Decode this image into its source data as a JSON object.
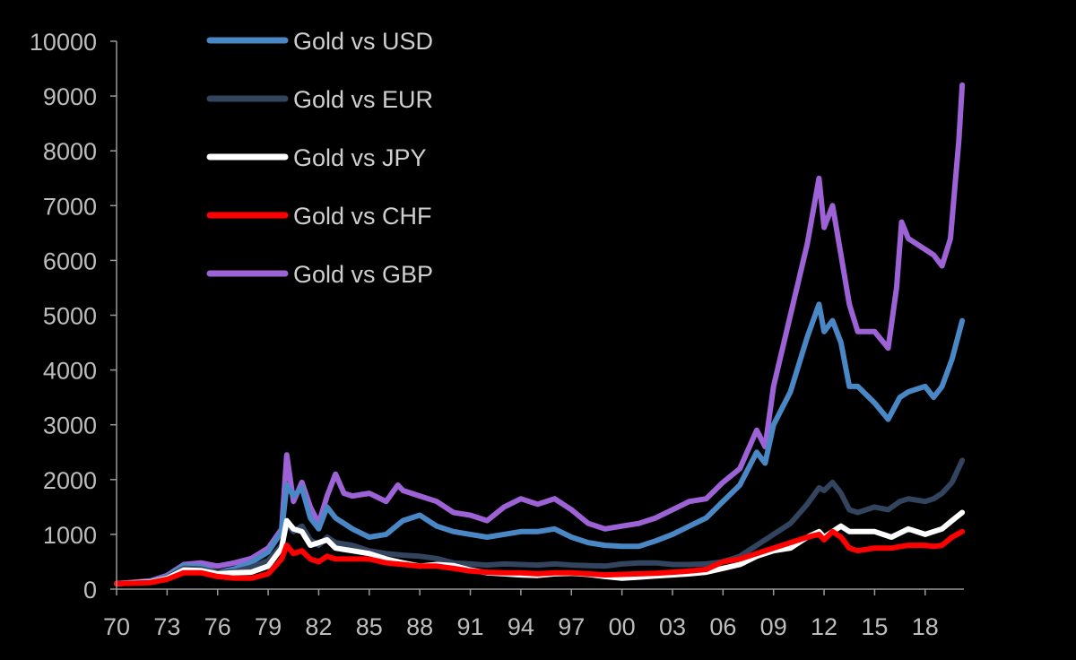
{
  "chart_data": {
    "type": "line",
    "title": "",
    "xlabel": "",
    "ylabel": "",
    "xlim": [
      1970,
      2020.3
    ],
    "ylim": [
      0,
      10000
    ],
    "y_ticks": [
      0,
      1000,
      2000,
      3000,
      4000,
      5000,
      6000,
      7000,
      8000,
      9000,
      10000
    ],
    "x_tick_values": [
      1970,
      1973,
      1976,
      1979,
      1982,
      1985,
      1988,
      1991,
      1994,
      1997,
      2000,
      2003,
      2006,
      2009,
      2012,
      2015,
      2018
    ],
    "x_tick_labels": [
      "70",
      "73",
      "76",
      "79",
      "82",
      "85",
      "88",
      "91",
      "94",
      "97",
      "00",
      "03",
      "06",
      "09",
      "12",
      "15",
      "18"
    ],
    "grid": false,
    "legend_position": "top-left",
    "series": [
      {
        "name": "Gold vs USD",
        "color": "#4a87c5",
        "x": [
          1970,
          1972,
          1973,
          1974,
          1975,
          1976,
          1977,
          1978,
          1979,
          1979.8,
          1980.1,
          1980.5,
          1981,
          1981.5,
          1982,
          1982.5,
          1983,
          1984,
          1985,
          1986,
          1987,
          1988,
          1989,
          1990,
          1991,
          1992,
          1993,
          1994,
          1995,
          1996,
          1997,
          1998,
          1999,
          2000,
          2001,
          2002,
          2003,
          2004,
          2005,
          2006,
          2007,
          2008,
          2008.5,
          2009,
          2010,
          2011,
          2011.7,
          2012,
          2012.5,
          2013,
          2013.5,
          2014,
          2015,
          2015.8,
          2016.5,
          2017,
          2018,
          2018.5,
          2019,
          2019.6,
          2020.2
        ],
        "y": [
          100,
          140,
          230,
          430,
          410,
          300,
          370,
          490,
          680,
          1050,
          1900,
          1700,
          1850,
          1300,
          1100,
          1500,
          1300,
          1100,
          950,
          1000,
          1250,
          1350,
          1150,
          1050,
          1000,
          950,
          1000,
          1050,
          1050,
          1100,
          950,
          850,
          800,
          780,
          780,
          880,
          1000,
          1150,
          1300,
          1600,
          1900,
          2500,
          2300,
          3000,
          3600,
          4600,
          5200,
          4700,
          4900,
          4500,
          3700,
          3700,
          3400,
          3100,
          3500,
          3600,
          3700,
          3500,
          3700,
          4200,
          4900
        ]
      },
      {
        "name": "Gold vs EUR",
        "color": "#33445e",
        "x": [
          1970,
          1972,
          1973,
          1974,
          1975,
          1976,
          1977,
          1978,
          1979,
          1979.8,
          1980.1,
          1980.5,
          1981,
          1981.5,
          1982,
          1982.5,
          1983,
          1984,
          1985,
          1986,
          1987,
          1988,
          1989,
          1990,
          1991,
          1992,
          1993,
          1994,
          1995,
          1996,
          1997,
          1998,
          1999,
          2000,
          2001,
          2002,
          2003,
          2004,
          2005,
          2006,
          2007,
          2008,
          2009,
          2010,
          2011,
          2011.7,
          2012,
          2012.5,
          2013,
          2013.5,
          2014,
          2015,
          2015.8,
          2016.5,
          2017,
          2018,
          2018.5,
          2019,
          2019.6,
          2020.2
        ],
        "y": [
          100,
          130,
          210,
          380,
          370,
          300,
          320,
          400,
          520,
          800,
          1200,
          1050,
          1150,
          900,
          800,
          950,
          850,
          800,
          700,
          650,
          620,
          600,
          560,
          480,
          460,
          440,
          460,
          450,
          440,
          460,
          440,
          430,
          420,
          460,
          480,
          480,
          450,
          450,
          460,
          500,
          600,
          800,
          1000,
          1200,
          1550,
          1850,
          1800,
          1950,
          1750,
          1450,
          1400,
          1500,
          1450,
          1600,
          1650,
          1600,
          1650,
          1750,
          1950,
          2350
        ]
      },
      {
        "name": "Gold vs JPY",
        "color": "#ffffff",
        "x": [
          1970,
          1972,
          1973,
          1974,
          1975,
          1976,
          1977,
          1978,
          1979,
          1979.8,
          1980.1,
          1980.5,
          1981,
          1981.5,
          1982,
          1982.5,
          1983,
          1984,
          1985,
          1986,
          1987,
          1988,
          1989,
          1990,
          1991,
          1992,
          1993,
          1994,
          1995,
          1996,
          1997,
          1998,
          1999,
          2000,
          2001,
          2002,
          2003,
          2004,
          2005,
          2006,
          2007,
          2008,
          2009,
          2010,
          2011,
          2011.7,
          2012,
          2012.5,
          2013,
          2013.5,
          2014,
          2015,
          2016,
          2017,
          2018,
          2018.5,
          2019,
          2019.6,
          2020.2
        ],
        "y": [
          100,
          130,
          200,
          350,
          340,
          280,
          300,
          310,
          420,
          750,
          1250,
          1100,
          1050,
          800,
          850,
          900,
          750,
          700,
          650,
          550,
          480,
          420,
          450,
          430,
          350,
          300,
          280,
          260,
          250,
          280,
          290,
          270,
          230,
          200,
          220,
          240,
          260,
          280,
          310,
          380,
          450,
          600,
          700,
          750,
          950,
          1050,
          950,
          1050,
          1150,
          1050,
          1050,
          1050,
          950,
          1100,
          1000,
          1050,
          1100,
          1250,
          1400
        ]
      },
      {
        "name": "Gold vs CHF",
        "color": "#ff0000",
        "x": [
          1970,
          1972,
          1973,
          1974,
          1975,
          1976,
          1977,
          1978,
          1979,
          1979.8,
          1980.1,
          1980.5,
          1981,
          1981.5,
          1982,
          1982.5,
          1983,
          1984,
          1985,
          1986,
          1987,
          1988,
          1989,
          1990,
          1991,
          1992,
          1993,
          1994,
          1995,
          1996,
          1997,
          1998,
          1999,
          2000,
          2001,
          2002,
          2003,
          2004,
          2005,
          2006,
          2007,
          2008,
          2009,
          2010,
          2011,
          2011.7,
          2012,
          2012.5,
          2013,
          2013.5,
          2014,
          2015,
          2016,
          2017,
          2018,
          2018.5,
          2019,
          2019.6,
          2020.2
        ],
        "y": [
          100,
          120,
          180,
          300,
          300,
          230,
          200,
          200,
          280,
          550,
          800,
          650,
          700,
          550,
          500,
          600,
          550,
          550,
          550,
          480,
          450,
          420,
          420,
          380,
          330,
          310,
          300,
          300,
          280,
          300,
          300,
          280,
          260,
          270,
          280,
          290,
          310,
          330,
          360,
          500,
          550,
          650,
          750,
          850,
          950,
          1000,
          900,
          1050,
          950,
          750,
          700,
          750,
          750,
          800,
          800,
          780,
          800,
          950,
          1050
        ]
      },
      {
        "name": "Gold vs GBP",
        "color": "#9d63d6",
        "x": [
          1970,
          1972,
          1973,
          1974,
          1975,
          1976,
          1977,
          1978,
          1979,
          1979.8,
          1980.1,
          1980.5,
          1981,
          1981.5,
          1982,
          1982.5,
          1983,
          1983.5,
          1984,
          1985,
          1986,
          1986.7,
          1987,
          1988,
          1989,
          1990,
          1991,
          1992,
          1993,
          1994,
          1995,
          1996,
          1997,
          1998,
          1999,
          2000,
          2001,
          2002,
          2003,
          2004,
          2005,
          2006,
          2007,
          2008,
          2008.5,
          2009,
          2010,
          2011,
          2011.7,
          2012,
          2012.5,
          2013,
          2013.5,
          2014,
          2015,
          2015.8,
          2016.3,
          2016.6,
          2017,
          2018,
          2018.5,
          2019,
          2019.5,
          2020,
          2020.2
        ],
        "y": [
          100,
          150,
          250,
          450,
          480,
          420,
          480,
          560,
          750,
          1100,
          2450,
          1600,
          1950,
          1500,
          1200,
          1700,
          2100,
          1750,
          1700,
          1750,
          1600,
          1900,
          1800,
          1700,
          1600,
          1400,
          1350,
          1250,
          1500,
          1650,
          1550,
          1650,
          1450,
          1200,
          1100,
          1150,
          1200,
          1300,
          1450,
          1600,
          1650,
          1950,
          2200,
          2900,
          2600,
          3700,
          5000,
          6300,
          7500,
          6600,
          7000,
          6100,
          5200,
          4700,
          4700,
          4400,
          5500,
          6700,
          6400,
          6200,
          6100,
          5900,
          6400,
          8200,
          9200
        ]
      }
    ]
  }
}
